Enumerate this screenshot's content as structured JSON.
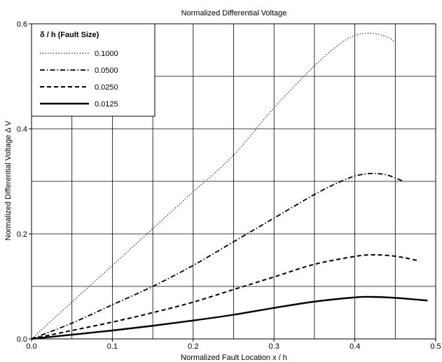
{
  "chart_data": {
    "type": "line",
    "title": "Normalized Differential Voltage",
    "xlabel": "Normalized Fault Location x / h",
    "ylabel": "Normalized Differential Voltage  Δ V",
    "xlim": [
      0,
      0.5
    ],
    "ylim": [
      0,
      0.6
    ],
    "x_ticks": [
      "0.0",
      "0.1",
      "0.2",
      "0.3",
      "0.4",
      "0.5"
    ],
    "y_ticks": [
      "0.0",
      "0.2",
      "0.4",
      "0.6"
    ],
    "grid": true,
    "legend": {
      "title": "δ / h (Fault Size)",
      "placement": "top-left"
    },
    "series": [
      {
        "name": "0.1000",
        "style": "dotted",
        "x": [
          0,
          0.05,
          0.1,
          0.15,
          0.2,
          0.25,
          0.3,
          0.35,
          0.38,
          0.4,
          0.42,
          0.44,
          0.45
        ],
        "y": [
          0,
          0.07,
          0.14,
          0.21,
          0.28,
          0.35,
          0.44,
          0.52,
          0.56,
          0.578,
          0.582,
          0.575,
          0.565
        ]
      },
      {
        "name": "0.0500",
        "style": "dashdot",
        "x": [
          0,
          0.05,
          0.1,
          0.15,
          0.2,
          0.25,
          0.3,
          0.35,
          0.38,
          0.4,
          0.42,
          0.44,
          0.46
        ],
        "y": [
          0,
          0.03,
          0.065,
          0.1,
          0.14,
          0.185,
          0.23,
          0.275,
          0.298,
          0.31,
          0.315,
          0.312,
          0.3
        ]
      },
      {
        "name": "0.0250",
        "style": "dashed",
        "x": [
          0,
          0.05,
          0.1,
          0.15,
          0.2,
          0.25,
          0.3,
          0.35,
          0.4,
          0.42,
          0.44,
          0.46,
          0.48
        ],
        "y": [
          0,
          0.016,
          0.032,
          0.05,
          0.07,
          0.094,
          0.118,
          0.142,
          0.157,
          0.16,
          0.159,
          0.155,
          0.148
        ]
      },
      {
        "name": "0.0125",
        "style": "solid",
        "x": [
          0,
          0.05,
          0.1,
          0.15,
          0.2,
          0.25,
          0.3,
          0.35,
          0.4,
          0.42,
          0.44,
          0.46,
          0.49
        ],
        "y": [
          0,
          0.008,
          0.016,
          0.025,
          0.035,
          0.046,
          0.059,
          0.071,
          0.079,
          0.08,
          0.079,
          0.077,
          0.073
        ]
      }
    ]
  }
}
